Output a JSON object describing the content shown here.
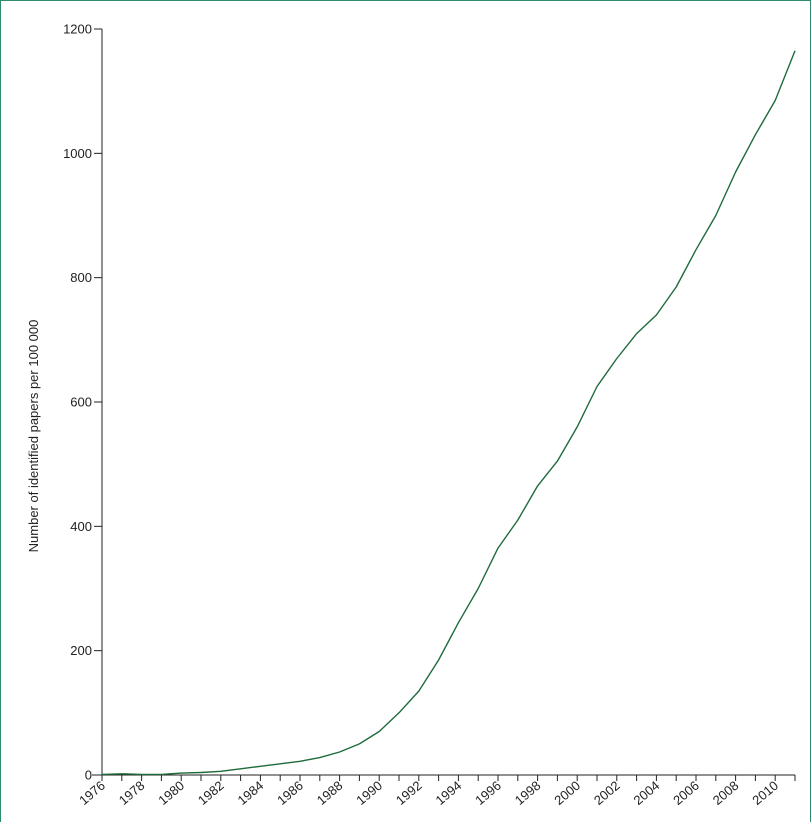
{
  "chart_data": {
    "type": "line",
    "title": "",
    "xlabel": "",
    "ylabel": "Number of identified papers per 100 000",
    "xlim": [
      1976,
      2011
    ],
    "ylim": [
      0,
      1200
    ],
    "x_tick_labels": [
      "1976",
      "1978",
      "1980",
      "1982",
      "1984",
      "1986",
      "1988",
      "1990",
      "1992",
      "1994",
      "1996",
      "1998",
      "2000",
      "2002",
      "2004",
      "2006",
      "2008",
      "2010"
    ],
    "y_tick_labels": [
      "0",
      "200",
      "400",
      "600",
      "800",
      "1000",
      "1200"
    ],
    "grid": false,
    "legend": "none",
    "colors": {
      "line": "#1e6b3c",
      "frame": "#2e8b6e",
      "axis": "#222222"
    },
    "series": [
      {
        "x": [
          1976,
          1977,
          1978,
          1979,
          1980,
          1981,
          1982,
          1983,
          1984,
          1985,
          1986,
          1987,
          1988,
          1989,
          1990,
          1991,
          1992,
          1993,
          1994,
          1995,
          1996,
          1997,
          1998,
          1999,
          2000,
          2001,
          2002,
          2003,
          2004,
          2005,
          2006,
          2007,
          2008,
          2009,
          2010,
          2011
        ],
        "y": [
          1,
          2,
          1,
          1,
          3,
          4,
          6,
          10,
          14,
          18,
          22,
          28,
          37,
          50,
          70,
          100,
          135,
          185,
          245,
          300,
          365,
          410,
          465,
          505,
          560,
          625,
          670,
          710,
          740,
          785,
          845,
          900,
          970,
          1030,
          1085,
          1165
        ]
      }
    ]
  }
}
